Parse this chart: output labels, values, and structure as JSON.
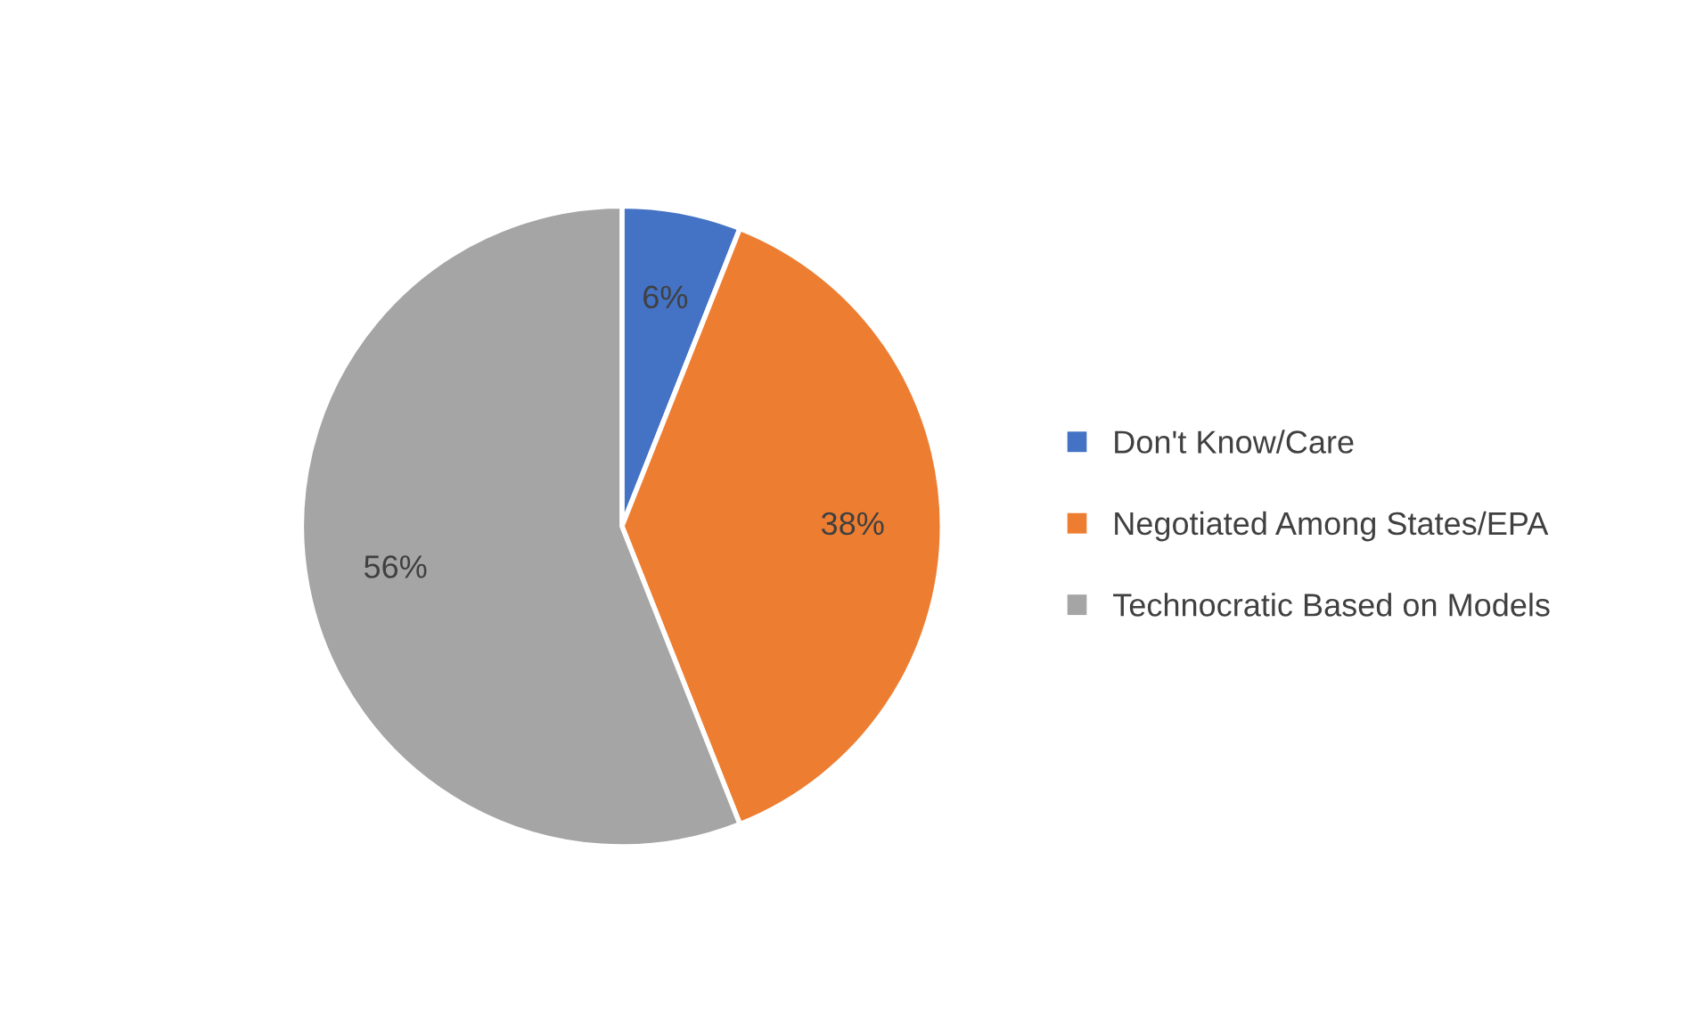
{
  "chart_data": {
    "type": "pie",
    "categories": [
      "Don't Know/Care",
      "Negotiated Among States/EPA",
      "Technocratic Based on Models"
    ],
    "values": [
      6,
      38,
      56
    ],
    "value_labels": [
      "6%",
      "38%",
      "56%"
    ],
    "colors": [
      "#4472c4",
      "#ed7d31",
      "#a5a5a5"
    ],
    "legend": "right"
  }
}
